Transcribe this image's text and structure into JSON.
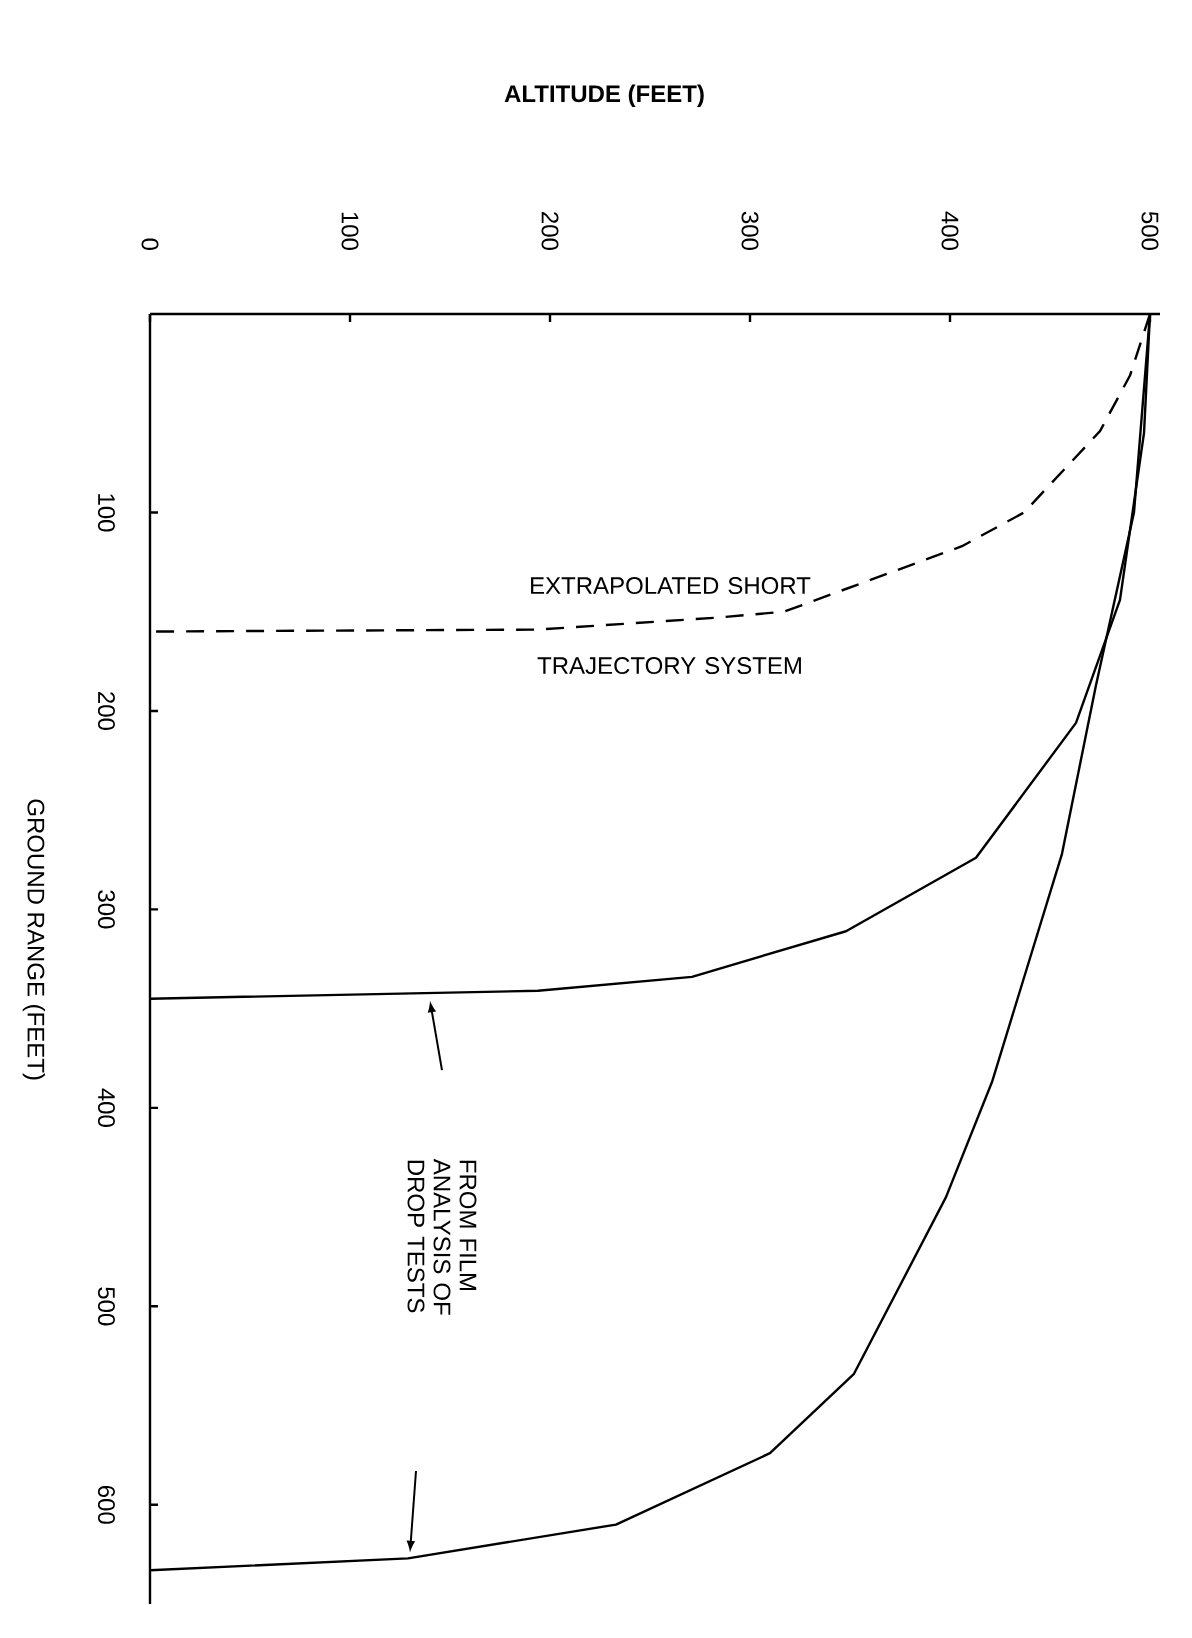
{
  "chart_data": {
    "type": "line",
    "xlabel": "ALTITUDE (FEET)",
    "ylabel": "GROUND RANGE (FEET)",
    "xlim": [
      0,
      505
    ],
    "ylim": [
      650,
      0
    ],
    "xticks": [
      0,
      100,
      200,
      300,
      400,
      500
    ],
    "yticks": [
      100,
      200,
      300,
      400,
      500,
      600
    ],
    "grid": false,
    "marker": "none",
    "series": [
      {
        "name": "EXTRAPOLATED SHORT TRAJECTORY SYSTEM",
        "color": "#000000",
        "line_style": "dashed",
        "x": [
          500,
          490,
          475,
          437,
          406,
          317,
          283,
          194,
          0
        ],
        "values": [
          0,
          31,
          59,
          100,
          117,
          150,
          153,
          159,
          160
        ]
      },
      {
        "color": "#000000",
        "line_style": "solid",
        "x": [
          500,
          497,
          485,
          463,
          413,
          348,
          271,
          194,
          0
        ],
        "values": [
          0,
          60,
          144,
          206,
          274,
          311,
          334,
          341,
          345
        ]
      },
      {
        "color": "#000000",
        "line_style": "solid",
        "x": [
          500,
          492,
          473,
          456,
          421,
          398,
          352,
          310,
          233,
          129,
          0
        ],
        "values": [
          0,
          100,
          187,
          272,
          387,
          445,
          534,
          574,
          610,
          627,
          633
        ]
      }
    ],
    "annotations": [
      "FROM FILM ANALYSIS OF DROP TESTS"
    ]
  }
}
